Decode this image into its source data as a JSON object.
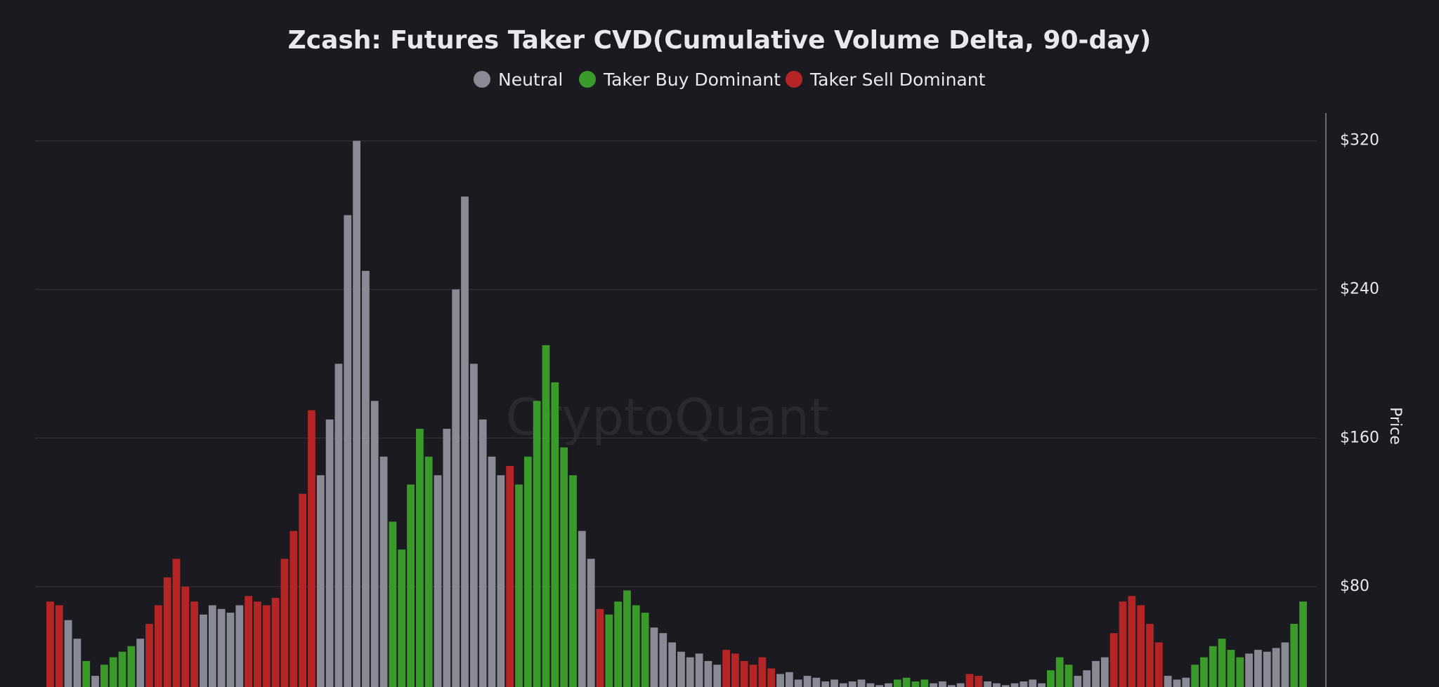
{
  "chart_data": {
    "type": "bar",
    "title": "Zcash: Futures Taker CVD(Cumulative Volume Delta, 90-day)",
    "watermark": "CryptoQuant",
    "y_axis_label": "Price",
    "ylim": [
      26,
      335
    ],
    "yticks": [
      {
        "value": 80,
        "label": "$80"
      },
      {
        "value": 160,
        "label": "$160"
      },
      {
        "value": 240,
        "label": "$240"
      },
      {
        "value": 320,
        "label": "$320"
      }
    ],
    "grid": true,
    "legend": "top",
    "series": [
      {
        "name": "Neutral",
        "color": "#8a8a96",
        "values": [
          null,
          null,
          62,
          52,
          null,
          32,
          null,
          null,
          null,
          null,
          52,
          null,
          null,
          null,
          null,
          null,
          null,
          65,
          70,
          68,
          66,
          70,
          null,
          null,
          null,
          null,
          null,
          null,
          null,
          null,
          140,
          170,
          200,
          280,
          320,
          250,
          180,
          150,
          null,
          null,
          null,
          null,
          null,
          140,
          165,
          240,
          290,
          200,
          170,
          150,
          140,
          null,
          null,
          null,
          null,
          null,
          null,
          null,
          null,
          110,
          95,
          null,
          null,
          null,
          null,
          null,
          null,
          58,
          55,
          50,
          45,
          42,
          44,
          40,
          38,
          null,
          null,
          null,
          null,
          null,
          null,
          33,
          34,
          30,
          32,
          31,
          29,
          30,
          28,
          29,
          30,
          28,
          27,
          28,
          null,
          null,
          null,
          null,
          28,
          29,
          27,
          28,
          null,
          null,
          29,
          28,
          27,
          28,
          29,
          30,
          28,
          null,
          null,
          null,
          32,
          35,
          40,
          42,
          null,
          null,
          null,
          null,
          null,
          null,
          32,
          30,
          31,
          null,
          null,
          null,
          null,
          null,
          null,
          44,
          46,
          45,
          47,
          50,
          null,
          null
        ]
      },
      {
        "name": "Taker Buy Dominant",
        "color": "#3a9a2a",
        "values": [
          null,
          null,
          null,
          null,
          40,
          null,
          38,
          42,
          45,
          48,
          null,
          null,
          null,
          null,
          null,
          null,
          null,
          null,
          null,
          null,
          null,
          null,
          null,
          null,
          null,
          null,
          null,
          null,
          null,
          null,
          null,
          null,
          null,
          null,
          null,
          null,
          null,
          null,
          115,
          100,
          135,
          165,
          150,
          null,
          null,
          null,
          null,
          null,
          null,
          null,
          null,
          null,
          135,
          150,
          180,
          210,
          190,
          155,
          140,
          null,
          null,
          null,
          65,
          72,
          78,
          70,
          66,
          null,
          null,
          null,
          null,
          null,
          null,
          null,
          null,
          null,
          null,
          null,
          null,
          null,
          null,
          null,
          null,
          null,
          null,
          null,
          null,
          null,
          null,
          null,
          null,
          null,
          null,
          null,
          30,
          31,
          29,
          30,
          null,
          null,
          null,
          null,
          null,
          null,
          null,
          null,
          null,
          null,
          null,
          null,
          null,
          35,
          42,
          38,
          null,
          null,
          null,
          null,
          null,
          null,
          null,
          null,
          null,
          null,
          null,
          null,
          null,
          38,
          42,
          48,
          52,
          46,
          42,
          null,
          null,
          null,
          null,
          null,
          60,
          72
        ]
      },
      {
        "name": "Taker Sell Dominant",
        "color": "#b52525",
        "values": [
          72,
          70,
          null,
          null,
          null,
          null,
          null,
          null,
          null,
          null,
          null,
          60,
          70,
          85,
          95,
          80,
          72,
          null,
          null,
          null,
          null,
          null,
          75,
          72,
          70,
          74,
          95,
          110,
          130,
          175,
          null,
          null,
          null,
          null,
          null,
          null,
          null,
          null,
          null,
          null,
          null,
          null,
          null,
          null,
          null,
          null,
          null,
          null,
          null,
          null,
          null,
          145,
          null,
          null,
          null,
          null,
          null,
          null,
          null,
          null,
          null,
          68,
          null,
          null,
          null,
          null,
          null,
          null,
          null,
          null,
          null,
          null,
          null,
          null,
          null,
          46,
          44,
          40,
          38,
          42,
          36,
          null,
          null,
          null,
          null,
          null,
          null,
          null,
          null,
          null,
          null,
          null,
          null,
          null,
          null,
          null,
          null,
          null,
          null,
          null,
          null,
          null,
          33,
          32,
          null,
          null,
          null,
          null,
          null,
          null,
          null,
          null,
          null,
          null,
          null,
          null,
          null,
          null,
          55,
          72,
          75,
          70,
          60,
          50,
          null,
          null,
          null,
          null,
          null,
          null,
          null,
          null,
          null,
          null,
          null,
          null,
          null,
          null
        ]
      }
    ]
  }
}
